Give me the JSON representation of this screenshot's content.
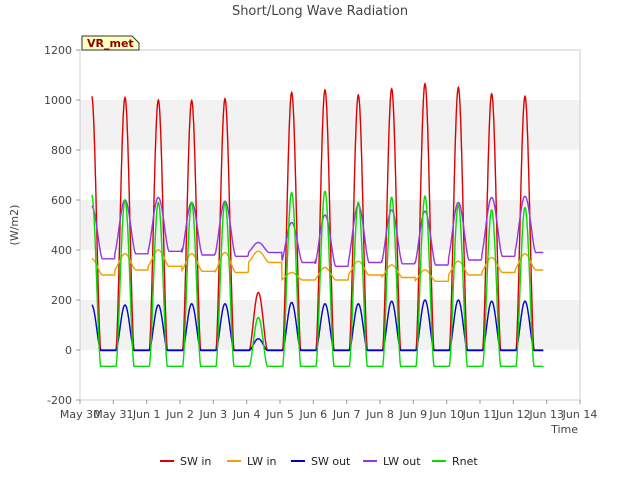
{
  "chart_data": {
    "type": "line",
    "title": "Short/Long Wave Radiation",
    "xlabel": "Time",
    "ylabel": "(W/m2)",
    "site_label": "VR_met",
    "ylim": [
      -200,
      1200
    ],
    "yticks": [
      -200,
      0,
      200,
      400,
      600,
      800,
      1000,
      1200
    ],
    "xlim": [
      0,
      15
    ],
    "xtick_labels": [
      "May 30",
      "May 31",
      "Jun 1",
      "Jun 2",
      "Jun 3",
      "Jun 4",
      "Jun 5",
      "Jun 6",
      "Jun 7",
      "Jun 8",
      "Jun 9",
      "Jun 10",
      "Jun 11",
      "Jun 12",
      "Jun 13",
      "Jun 14"
    ],
    "grid": "horizontal bands",
    "legend_position": "bottom",
    "x_start_day": 0.35,
    "series": [
      {
        "name": "SW in",
        "color": "#dd0000",
        "daily_peak": [
          1015,
          1010,
          1000,
          998,
          1005,
          230,
          1030,
          1040,
          1020,
          1045,
          1065,
          1050,
          1025,
          1015
        ],
        "night": 0
      },
      {
        "name": "LW in",
        "color": "#f0a000",
        "daily_peak": [
          365,
          385,
          400,
          385,
          390,
          395,
          310,
          330,
          355,
          340,
          320,
          355,
          370,
          385
        ],
        "daily_low": [
          300,
          320,
          335,
          315,
          310,
          350,
          280,
          280,
          300,
          290,
          275,
          300,
          310,
          320
        ]
      },
      {
        "name": "SW out",
        "color": "#0000cc",
        "daily_peak": [
          180,
          180,
          180,
          185,
          185,
          45,
          190,
          185,
          185,
          195,
          200,
          200,
          195,
          195
        ],
        "night": -2
      },
      {
        "name": "LW out",
        "color": "#9933dd",
        "daily_peak": [
          575,
          600,
          610,
          590,
          595,
          430,
          510,
          540,
          580,
          560,
          555,
          590,
          610,
          615
        ],
        "daily_low": [
          365,
          385,
          395,
          380,
          375,
          390,
          350,
          335,
          350,
          345,
          340,
          360,
          375,
          390
        ]
      },
      {
        "name": "Rnet",
        "color": "#00dd00",
        "daily_peak": [
          620,
          600,
          590,
          590,
          590,
          130,
          630,
          635,
          590,
          610,
          615,
          580,
          560,
          570
        ],
        "night": -65
      }
    ]
  }
}
